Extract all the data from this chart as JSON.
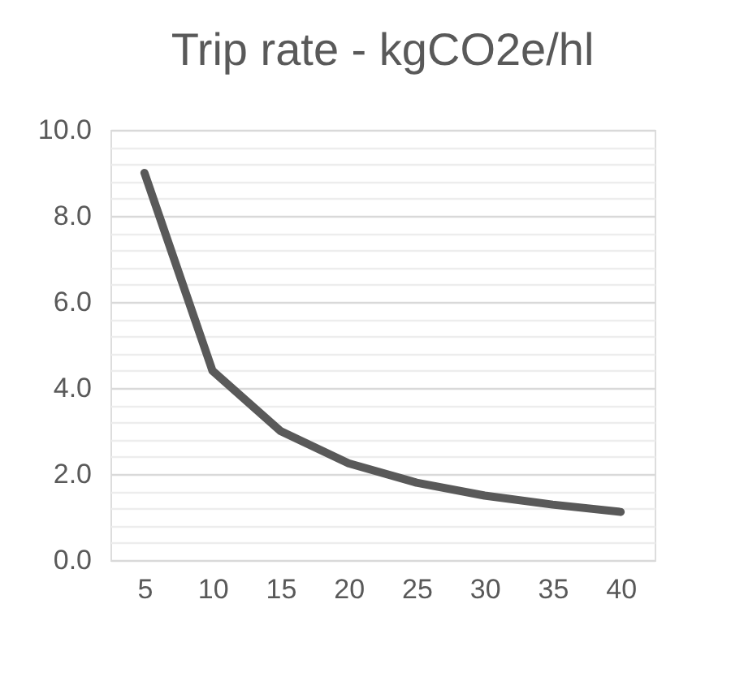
{
  "chart_data": {
    "type": "line",
    "title": "Trip rate - kgCO2e/hl",
    "categories": [
      "5",
      "10",
      "15",
      "20",
      "25",
      "30",
      "35",
      "40"
    ],
    "series": [
      {
        "color": "#595959",
        "values": [
          9.0,
          4.4,
          3.0,
          2.25,
          1.8,
          1.5,
          1.29,
          1.12
        ]
      }
    ],
    "ylim": [
      0,
      10
    ],
    "yticks": [
      {
        "value": 0,
        "label": "0.0"
      },
      {
        "value": 0.4,
        "label": null
      },
      {
        "value": 0.8,
        "label": null
      },
      {
        "value": 1.2,
        "label": null
      },
      {
        "value": 1.6,
        "label": null
      },
      {
        "value": 2,
        "label": "2.0"
      },
      {
        "value": 2.4,
        "label": null
      },
      {
        "value": 2.8,
        "label": null
      },
      {
        "value": 3.2,
        "label": null
      },
      {
        "value": 3.6,
        "label": null
      },
      {
        "value": 4,
        "label": "4.0"
      },
      {
        "value": 4.4,
        "label": null
      },
      {
        "value": 4.8,
        "label": null
      },
      {
        "value": 5.2,
        "label": null
      },
      {
        "value": 5.6,
        "label": null
      },
      {
        "value": 6,
        "label": "6.0"
      },
      {
        "value": 6.4,
        "label": null
      },
      {
        "value": 6.8,
        "label": null
      },
      {
        "value": 7.2,
        "label": null
      },
      {
        "value": 7.6,
        "label": null
      },
      {
        "value": 8,
        "label": "8.0"
      },
      {
        "value": 8.4,
        "label": null
      },
      {
        "value": 8.8,
        "label": null
      },
      {
        "value": 9.2,
        "label": null
      },
      {
        "value": 9.6,
        "label": null
      },
      {
        "value": 10,
        "label": "10.0"
      }
    ],
    "grid": "y",
    "legend": false,
    "marker": "none",
    "line_style": "solid"
  }
}
